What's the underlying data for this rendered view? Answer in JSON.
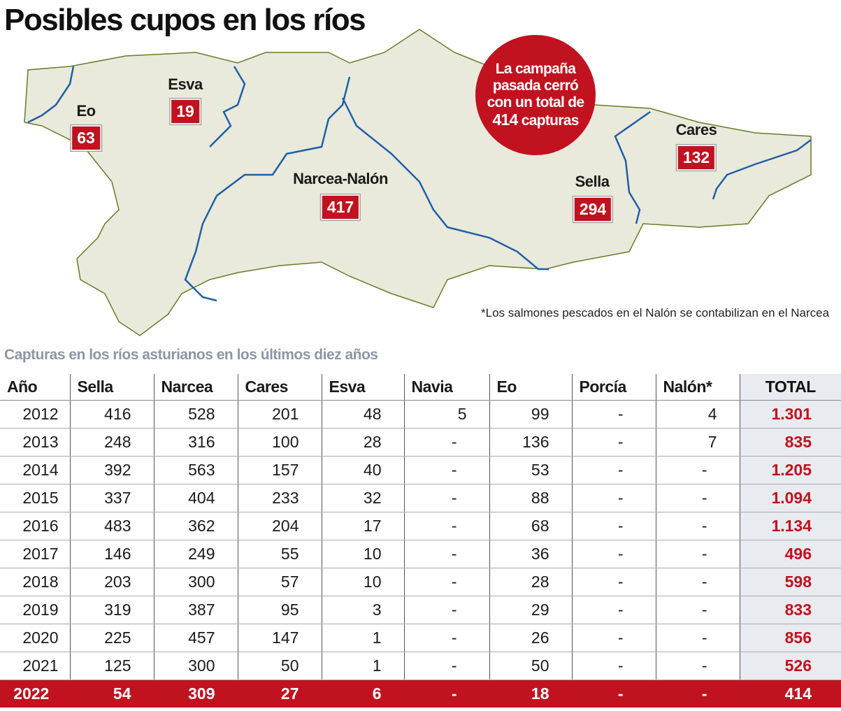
{
  "title": "Posibles cupos en los ríos",
  "map": {
    "rivers": [
      {
        "name": "Eo",
        "value": "63"
      },
      {
        "name": "Esva",
        "value": "19"
      },
      {
        "name": "Narcea-Nalón",
        "value": "417"
      },
      {
        "name": "Sella",
        "value": "294"
      },
      {
        "name": "Cares",
        "value": "132"
      }
    ],
    "bubble": {
      "line1": "La campaña",
      "line2": "pasada cerró",
      "line3": "con un total de",
      "line4_num": "414",
      "line4_text": "capturas"
    },
    "note": "*Los salmones pescados en el Nalón se contabilizan en el Narcea",
    "colors": {
      "land": "#e9eadb",
      "border": "#6b7a2a",
      "river": "#1f5fa8",
      "accent": "#c1121f"
    }
  },
  "subtitle": "Capturas en los ríos asturianos en los últimos diez años",
  "chart_data": {
    "type": "table",
    "title": "Capturas en los ríos asturianos en los últimos diez años",
    "columns": [
      "Año",
      "Sella",
      "Narcea",
      "Cares",
      "Esva",
      "Navia",
      "Eo",
      "Porcía",
      "Nalón*",
      "TOTAL"
    ],
    "rows": [
      [
        "2012",
        "416",
        "528",
        "201",
        "48",
        "5",
        "99",
        "-",
        "4",
        "1.301"
      ],
      [
        "2013",
        "248",
        "316",
        "100",
        "28",
        "-",
        "136",
        "-",
        "7",
        "835"
      ],
      [
        "2014",
        "392",
        "563",
        "157",
        "40",
        "-",
        "53",
        "-",
        "-",
        "1.205"
      ],
      [
        "2015",
        "337",
        "404",
        "233",
        "32",
        "-",
        "88",
        "-",
        "-",
        "1.094"
      ],
      [
        "2016",
        "483",
        "362",
        "204",
        "17",
        "-",
        "68",
        "-",
        "-",
        "1.134"
      ],
      [
        "2017",
        "146",
        "249",
        "55",
        "10",
        "-",
        "36",
        "-",
        "-",
        "496"
      ],
      [
        "2018",
        "203",
        "300",
        "57",
        "10",
        "-",
        "28",
        "-",
        "-",
        "598"
      ],
      [
        "2019",
        "319",
        "387",
        "95",
        "3",
        "-",
        "29",
        "-",
        "-",
        "833"
      ],
      [
        "2020",
        "225",
        "457",
        "147",
        "1",
        "-",
        "26",
        "-",
        "-",
        "856"
      ],
      [
        "2021",
        "125",
        "300",
        "50",
        "1",
        "-",
        "50",
        "-",
        "-",
        "526"
      ],
      [
        "2022",
        "54",
        "309",
        "27",
        "6",
        "-",
        "18",
        "-",
        "-",
        "414"
      ]
    ],
    "highlight_row": "2022"
  }
}
